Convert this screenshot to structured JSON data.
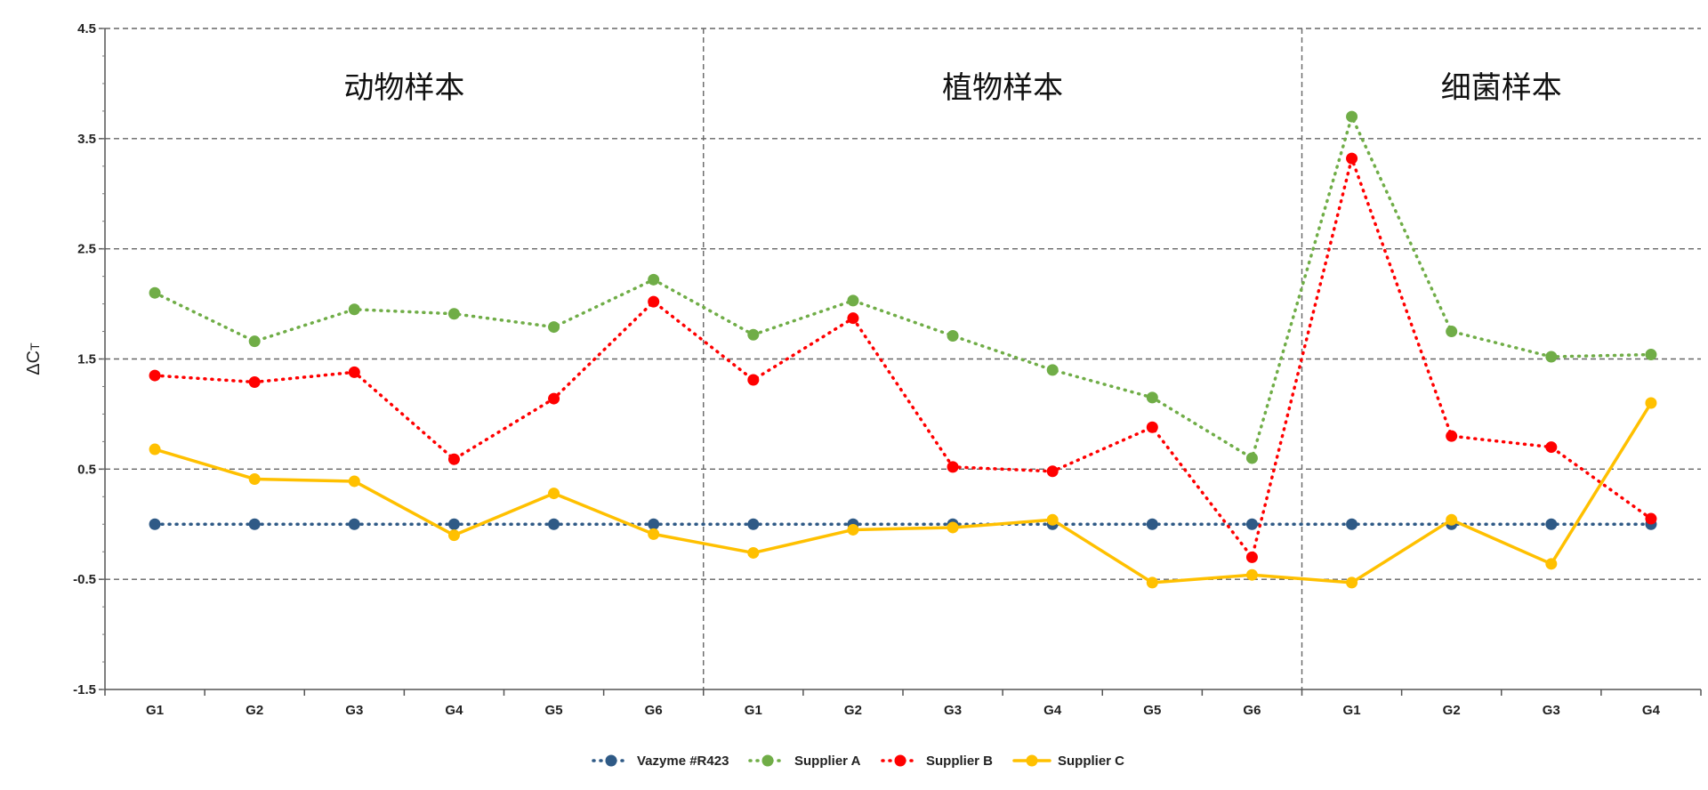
{
  "chart_data": {
    "type": "line",
    "ylabel": "ΔCT",
    "ylabel_main": "ΔC",
    "ylabel_sub": "T",
    "ylim": [
      -1.5,
      4.5
    ],
    "yticks": [
      "4.5",
      "3.5",
      "2.5",
      "1.5",
      "0.5",
      "-0.5",
      "-1.5"
    ],
    "ytick_values": [
      4.5,
      3.5,
      2.5,
      1.5,
      0.5,
      -0.5,
      -1.5
    ],
    "categories": [
      "G1",
      "G2",
      "G3",
      "G4",
      "G5",
      "G6",
      "G1",
      "G2",
      "G3",
      "G4",
      "G5",
      "G6",
      "G1",
      "G2",
      "G3",
      "G4"
    ],
    "sections": [
      {
        "label": "动物样本",
        "count": 6
      },
      {
        "label": "植物样本",
        "count": 6
      },
      {
        "label": "细菌样本",
        "count": 4
      }
    ],
    "grid": true,
    "legend_position": "bottom",
    "series": [
      {
        "name": "Vazyme #R423",
        "color": "#2f5a86",
        "style": "dotted",
        "values": [
          0,
          0,
          0,
          0,
          0,
          0,
          0,
          0,
          0,
          0,
          0,
          0,
          0,
          0,
          0,
          0
        ]
      },
      {
        "name": "Supplier A",
        "color": "#70ad47",
        "style": "dotted",
        "values": [
          2.1,
          1.66,
          1.95,
          1.91,
          1.79,
          2.22,
          1.72,
          2.03,
          1.71,
          1.4,
          1.15,
          0.6,
          3.7,
          1.75,
          1.52,
          1.54
        ]
      },
      {
        "name": "Supplier B",
        "color": "#ff0000",
        "style": "dotted",
        "values": [
          1.35,
          1.29,
          1.38,
          0.59,
          1.14,
          2.02,
          1.31,
          1.87,
          0.52,
          0.48,
          0.88,
          -0.3,
          3.32,
          0.8,
          0.7,
          0.05
        ]
      },
      {
        "name": "Supplier C",
        "color": "#ffc000",
        "style": "solid",
        "values": [
          0.68,
          0.41,
          0.39,
          -0.1,
          0.28,
          -0.09,
          -0.26,
          -0.05,
          -0.03,
          0.04,
          -0.53,
          -0.46,
          -0.53,
          0.04,
          -0.36,
          1.1
        ]
      }
    ]
  }
}
